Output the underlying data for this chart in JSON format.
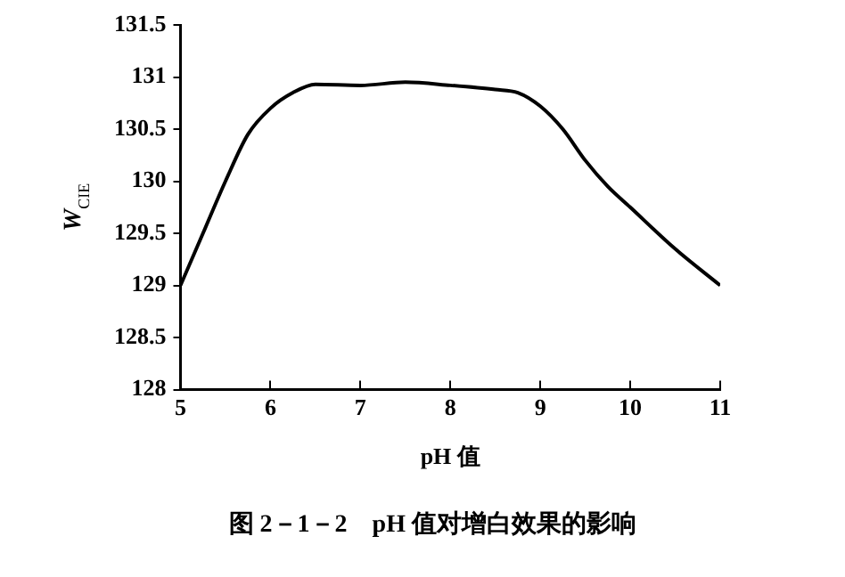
{
  "chart_data": {
    "type": "line",
    "xlabel": "pH 值",
    "ylabel": "W$_{CIE}$",
    "annotations": [
      "图 2－1－2　pH 值对增白效果的影响"
    ],
    "x": [
      5,
      5.25,
      5.5,
      5.75,
      6,
      6.25,
      6.5,
      7,
      7.5,
      8,
      8.5,
      8.75,
      9,
      9.25,
      9.5,
      9.75,
      10,
      10.5,
      11
    ],
    "series": [
      {
        "color": "#000000",
        "values": [
          129.0,
          129.5,
          130.0,
          130.45,
          130.7,
          130.85,
          130.93,
          130.92,
          130.95,
          130.92,
          130.88,
          130.85,
          130.72,
          130.5,
          130.2,
          129.95,
          129.75,
          129.35,
          129.0
        ]
      }
    ],
    "xlim": [
      5,
      11
    ],
    "xticks": [
      5,
      6,
      7,
      8,
      9,
      10,
      11
    ],
    "ylim": [
      128,
      131.5
    ],
    "yticks": [
      128,
      128.5,
      129,
      129.5,
      130,
      130.5,
      131,
      131.5
    ],
    "grid": false,
    "legend": false,
    "marker": "none",
    "line_style": "solid"
  }
}
